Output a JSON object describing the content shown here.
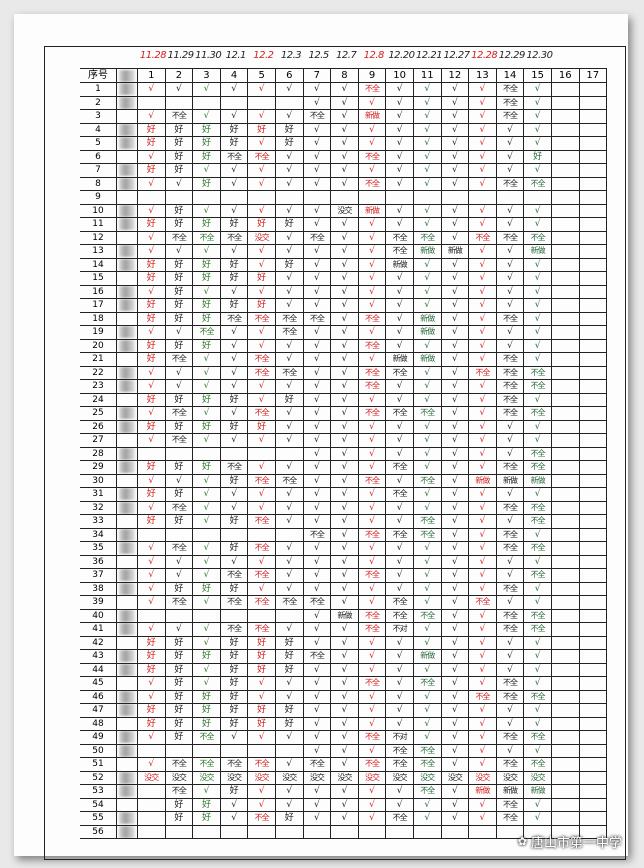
{
  "header": {
    "seq_label": "序号",
    "dates": [
      "11.28",
      "11.29",
      "11.30",
      "12.1",
      "12.2",
      "12.3",
      "12.5",
      "12.7",
      "12.8",
      "12.20",
      "12.21",
      "12.27",
      "12.28",
      "12.29",
      "12.30"
    ],
    "date_colors": [
      "#d42020",
      "#222",
      "#222",
      "#222",
      "#d42020",
      "#222",
      "#222",
      "#222",
      "#d42020",
      "#222",
      "#222",
      "#222",
      "#d42020",
      "#222",
      "#222"
    ],
    "columns": [
      "1",
      "2",
      "3",
      "4",
      "5",
      "6",
      "7",
      "8",
      "9",
      "10",
      "11",
      "12",
      "13",
      "14",
      "15",
      "16",
      "17"
    ]
  },
  "column_ink_colors": [
    "#d42020",
    "#222",
    "#2a7a2a",
    "#222",
    "#d42020",
    "#222",
    "#222",
    "#222",
    "#d42020",
    "#222",
    "#2a6a3a",
    "#222",
    "#d42020",
    "#222",
    "#2a6a3a",
    "#222",
    "#222"
  ],
  "rows": [
    [
      "√",
      "√",
      "√",
      "√",
      "√",
      "√",
      "√",
      "√",
      "不全",
      "√",
      "√",
      "√",
      "√",
      "不全",
      "√"
    ],
    [
      "",
      "",
      "",
      "",
      "",
      "",
      "√",
      "√",
      "√",
      "√",
      "√",
      "√",
      "√",
      "不全",
      "√"
    ],
    [
      "√",
      "不全",
      "√",
      "√",
      "√",
      "√",
      "不全",
      "√",
      "新做",
      "√",
      "√",
      "√",
      "√",
      "不全",
      "√"
    ],
    [
      "好",
      "好",
      "好",
      "好",
      "好",
      "好",
      "√",
      "√",
      "√",
      "√",
      "√",
      "√",
      "√",
      "√",
      "√"
    ],
    [
      "好",
      "好",
      "好",
      "好",
      "√",
      "好",
      "√",
      "√",
      "√",
      "√",
      "√",
      "√",
      "√",
      "√",
      "√"
    ],
    [
      "√",
      "好",
      "好",
      "不全",
      "不全",
      "√",
      "√",
      "√",
      "不全",
      "√",
      "√",
      "√",
      "√",
      "√",
      "好"
    ],
    [
      "好",
      "好",
      "√",
      "√",
      "√",
      "√",
      "√",
      "√",
      "√",
      "√",
      "√",
      "√",
      "√",
      "√",
      "√"
    ],
    [
      "√",
      "√",
      "好",
      "√",
      "√",
      "√",
      "√",
      "√",
      "不全",
      "√",
      "√",
      "√",
      "√",
      "不全",
      "不全"
    ],
    [
      "",
      "",
      "",
      "",
      "",
      "",
      "",
      "",
      "",
      "",
      "",
      "",
      "",
      "",
      ""
    ],
    [
      "√",
      "好",
      "√",
      "√",
      "√",
      "√",
      "√",
      "没交",
      "新做",
      "√",
      "√",
      "√",
      "√",
      "√",
      "√"
    ],
    [
      "好",
      "好",
      "好",
      "好",
      "好",
      "好",
      "√",
      "√",
      "√",
      "√",
      "√",
      "√",
      "√",
      "√",
      "√"
    ],
    [
      "√",
      "不全",
      "不全",
      "不全",
      "没交",
      "√",
      "不全",
      "√",
      "√",
      "不全",
      "不全",
      "√",
      "不全",
      "不全",
      "不全"
    ],
    [
      "√",
      "√",
      "√",
      "√",
      "√",
      "√",
      "√",
      "√",
      "√",
      "不全",
      "新做",
      "新做",
      "√",
      "√",
      "新做"
    ],
    [
      "好",
      "好",
      "好",
      "好",
      "√",
      "好",
      "√",
      "√",
      "√",
      "新做",
      "√",
      "√",
      "√",
      "√",
      "√"
    ],
    [
      "好",
      "好",
      "好",
      "好",
      "好",
      "√",
      "√",
      "√",
      "√",
      "√",
      "√",
      "√",
      "√",
      "√",
      "√"
    ],
    [
      "√",
      "好",
      "√",
      "√",
      "√",
      "√",
      "√",
      "√",
      "√",
      "√",
      "√",
      "√",
      "√",
      "√",
      "√"
    ],
    [
      "好",
      "好",
      "好",
      "好",
      "好",
      "√",
      "√",
      "√",
      "√",
      "√",
      "√",
      "√",
      "√",
      "√",
      "√"
    ],
    [
      "好",
      "好",
      "好",
      "不全",
      "不全",
      "不全",
      "不全",
      "√",
      "不全",
      "√",
      "新做",
      "√",
      "√",
      "不全",
      "√"
    ],
    [
      "√",
      "√",
      "不全",
      "√",
      "√",
      "不全",
      "√",
      "√",
      "√",
      "√",
      "新做",
      "√",
      "√",
      "√",
      "√"
    ],
    [
      "好",
      "好",
      "好",
      "√",
      "√",
      "√",
      "√",
      "√",
      "不全",
      "√",
      "√",
      "√",
      "√",
      "√",
      "√"
    ],
    [
      "好",
      "不全",
      "√",
      "√",
      "不全",
      "√",
      "√",
      "√",
      "√",
      "新做",
      "新做",
      "√",
      "√",
      "不全",
      "√"
    ],
    [
      "√",
      "√",
      "√",
      "√",
      "不全",
      "不全",
      "√",
      "√",
      "不全",
      "不全",
      "√",
      "√",
      "不全",
      "不全",
      "不全"
    ],
    [
      "√",
      "√",
      "√",
      "√",
      "√",
      "√",
      "√",
      "√",
      "不全",
      "√",
      "√",
      "√",
      "√",
      "不全",
      "不全"
    ],
    [
      "好",
      "好",
      "好",
      "好",
      "√",
      "好",
      "√",
      "√",
      "√",
      "√",
      "√",
      "√",
      "√",
      "不全",
      "√"
    ],
    [
      "√",
      "不全",
      "√",
      "√",
      "不全",
      "√",
      "√",
      "√",
      "不全",
      "不全",
      "不全",
      "√",
      "√",
      "不全",
      "不全"
    ],
    [
      "好",
      "好",
      "好",
      "好",
      "好",
      "√",
      "√",
      "√",
      "√",
      "√",
      "√",
      "√",
      "√",
      "√",
      "√"
    ],
    [
      "√",
      "不全",
      "√",
      "√",
      "√",
      "√",
      "√",
      "√",
      "√",
      "√",
      "√",
      "√",
      "√",
      "√",
      "√"
    ],
    [
      "",
      "",
      "",
      "",
      "",
      "",
      "√",
      "√",
      "√",
      "√",
      "√",
      "√",
      "√",
      "√",
      "不全"
    ],
    [
      "好",
      "好",
      "好",
      "不全",
      "√",
      "√",
      "√",
      "√",
      "√",
      "不全",
      "√",
      "√",
      "√",
      "不全",
      "不全"
    ],
    [
      "√",
      "√",
      "√",
      "好",
      "不全",
      "不全",
      "√",
      "√",
      "不全",
      "√",
      "不全",
      "√",
      "新做",
      "新做",
      "新做"
    ],
    [
      "好",
      "好",
      "√",
      "√",
      "√",
      "√",
      "√",
      "√",
      "√",
      "不全",
      "√",
      "√",
      "√",
      "√",
      "√"
    ],
    [
      "√",
      "不全",
      "√",
      "√",
      "√",
      "√",
      "√",
      "√",
      "√",
      "√",
      "√",
      "√",
      "√",
      "不全",
      "不全"
    ],
    [
      "好",
      "好",
      "√",
      "好",
      "不全",
      "√",
      "√",
      "√",
      "√",
      "√",
      "不全",
      "√",
      "√",
      "√",
      "不全"
    ],
    [
      "",
      "",
      "",
      "",
      "",
      "",
      "不全",
      "√",
      "不全",
      "不全",
      "不全",
      "√",
      "√",
      "不全",
      "√"
    ],
    [
      "√",
      "不全",
      "√",
      "好",
      "不全",
      "√",
      "√",
      "√",
      "√",
      "√",
      "√",
      "√",
      "√",
      "不全",
      "不全"
    ],
    [
      "√",
      "√",
      "√",
      "√",
      "√",
      "√",
      "√",
      "√",
      "√",
      "√",
      "√",
      "√",
      "√",
      "√",
      "√"
    ],
    [
      "√",
      "√",
      "√",
      "不全",
      "不全",
      "√",
      "√",
      "√",
      "不全",
      "√",
      "√",
      "√",
      "√",
      "√",
      "不全"
    ],
    [
      "√",
      "好",
      "好",
      "好",
      "√",
      "√",
      "√",
      "√",
      "√",
      "√",
      "√",
      "√",
      "√",
      "不全",
      "√"
    ],
    [
      "√",
      "不全",
      "√",
      "不全",
      "不全",
      "不全",
      "不全",
      "√",
      "√",
      "不全",
      "√",
      "√",
      "不全",
      "√",
      "√"
    ],
    [
      "",
      "",
      "",
      "",
      "",
      "",
      "√",
      "新做",
      "不全",
      "不全",
      "不全",
      "√",
      "√",
      "不全",
      "不全"
    ],
    [
      "√",
      "√",
      "√",
      "不全",
      "不全",
      "√",
      "√",
      "√",
      "不全",
      "不对",
      "√",
      "√",
      "√",
      "不全",
      "不全"
    ],
    [
      "好",
      "好",
      "√",
      "好",
      "好",
      "好",
      "√",
      "√",
      "√",
      "√",
      "√",
      "√",
      "√",
      "√",
      "√"
    ],
    [
      "好",
      "好",
      "好",
      "好",
      "好",
      "好",
      "不全",
      "√",
      "√",
      "√",
      "新做",
      "√",
      "√",
      "√",
      "√"
    ],
    [
      "好",
      "好",
      "√",
      "好",
      "好",
      "好",
      "√",
      "√",
      "√",
      "√",
      "√",
      "√",
      "√",
      "√",
      "√"
    ],
    [
      "√",
      "好",
      "√",
      "好",
      "√",
      "√",
      "√",
      "√",
      "不全",
      "√",
      "不全",
      "√",
      "√",
      "不全",
      "√"
    ],
    [
      "√",
      "好",
      "好",
      "好",
      "√",
      "√",
      "√",
      "√",
      "√",
      "√",
      "√",
      "√",
      "不全",
      "不全",
      "不全"
    ],
    [
      "好",
      "好",
      "好",
      "好",
      "好",
      "好",
      "√",
      "√",
      "√",
      "√",
      "√",
      "√",
      "√",
      "√",
      "√"
    ],
    [
      "好",
      "好",
      "好",
      "好",
      "好",
      "好",
      "√",
      "√",
      "√",
      "√",
      "√",
      "√",
      "√",
      "√",
      "√"
    ],
    [
      "√",
      "好",
      "不全",
      "√",
      "√",
      "√",
      "√",
      "√",
      "不全",
      "不对",
      "√",
      "√",
      "√",
      "不全",
      "不全"
    ],
    [
      "",
      "",
      "",
      "",
      "",
      "",
      "√",
      "√",
      "√",
      "不全",
      "不全",
      "√",
      "√",
      "√",
      "√"
    ],
    [
      "√",
      "不全",
      "不全",
      "不全",
      "不全",
      "√",
      "不全",
      "√",
      "不全",
      "不全",
      "不全",
      "√",
      "√",
      "不全",
      "不全"
    ],
    [
      "没交",
      "没交",
      "没交",
      "没交",
      "没交",
      "没交",
      "没交",
      "没交",
      "没交",
      "没交",
      "没交",
      "没交",
      "没交",
      "没交",
      "没交"
    ],
    [
      "",
      "不全",
      "√",
      "好",
      "√",
      "√",
      "√",
      "√",
      "√",
      "√",
      "不全",
      "√",
      "新做",
      "新做",
      "新做"
    ],
    [
      "",
      "好",
      "好",
      "√",
      "√",
      "√",
      "√",
      "√",
      "√",
      "√",
      "√",
      "√",
      "√",
      "不全",
      "√"
    ],
    [
      "",
      "好",
      "好",
      "√",
      "不全",
      "好",
      "√",
      "√",
      "√",
      "不全",
      "√",
      "√",
      "√",
      "不全",
      "√"
    ],
    [
      "",
      "",
      "",
      "",
      "",
      "",
      "",
      "",
      "",
      "",
      "",
      "",
      "",
      "",
      ""
    ]
  ],
  "watermark": {
    "icon": "wechat-official-account-icon",
    "text": "唐山市第一中学"
  }
}
